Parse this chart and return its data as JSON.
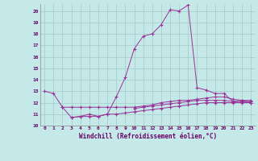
{
  "xlabel": "Windchill (Refroidissement éolien,°C)",
  "bg_color": "#c5e8e8",
  "grid_color": "#a8cece",
  "line_color": "#993399",
  "xlim": [
    -0.5,
    23.5
  ],
  "ylim": [
    10,
    20.6
  ],
  "yticks": [
    10,
    11,
    12,
    13,
    14,
    15,
    16,
    17,
    18,
    19,
    20
  ],
  "xticks": [
    0,
    1,
    2,
    3,
    4,
    5,
    6,
    7,
    8,
    9,
    10,
    11,
    12,
    13,
    14,
    15,
    16,
    17,
    18,
    19,
    20,
    21,
    22,
    23
  ],
  "series": [
    {
      "x": [
        0,
        1,
        2,
        3,
        4,
        5,
        6,
        7,
        8,
        9,
        10,
        11,
        12,
        13,
        14,
        15,
        16,
        17,
        18,
        19,
        20,
        21,
        22,
        23
      ],
      "y": [
        13.0,
        12.8,
        11.6,
        10.7,
        10.8,
        11.0,
        10.8,
        11.0,
        12.5,
        14.2,
        16.7,
        17.8,
        18.0,
        18.8,
        20.1,
        20.0,
        20.5,
        13.3,
        13.1,
        12.8,
        12.8,
        12.1,
        12.2,
        12.0
      ]
    },
    {
      "x": [
        2,
        3,
        4,
        5,
        6,
        7,
        8,
        9,
        10,
        11,
        12,
        13,
        14,
        15,
        16,
        17,
        18,
        19,
        20,
        21,
        22,
        23
      ],
      "y": [
        11.6,
        11.6,
        11.6,
        11.6,
        11.6,
        11.6,
        11.6,
        11.6,
        11.6,
        11.7,
        11.8,
        12.0,
        12.1,
        12.2,
        12.2,
        12.3,
        12.4,
        12.5,
        12.5,
        12.3,
        12.2,
        12.2
      ]
    },
    {
      "x": [
        3,
        4,
        5,
        6,
        7,
        8,
        9,
        10,
        11,
        12,
        13,
        14,
        15,
        16,
        17,
        18,
        19,
        20,
        21,
        22,
        23
      ],
      "y": [
        10.7,
        10.8,
        10.8,
        10.8,
        11.0,
        11.0,
        11.1,
        11.2,
        11.3,
        11.4,
        11.5,
        11.6,
        11.7,
        11.8,
        11.9,
        12.0,
        12.0,
        12.0,
        12.0,
        12.0,
        12.0
      ]
    },
    {
      "x": [
        10,
        11,
        12,
        13,
        14,
        15,
        16,
        17,
        18,
        19,
        20,
        21,
        22,
        23
      ],
      "y": [
        11.5,
        11.6,
        11.7,
        11.8,
        11.9,
        12.0,
        12.1,
        12.2,
        12.2,
        12.2,
        12.2,
        12.1,
        12.1,
        12.1
      ]
    }
  ]
}
